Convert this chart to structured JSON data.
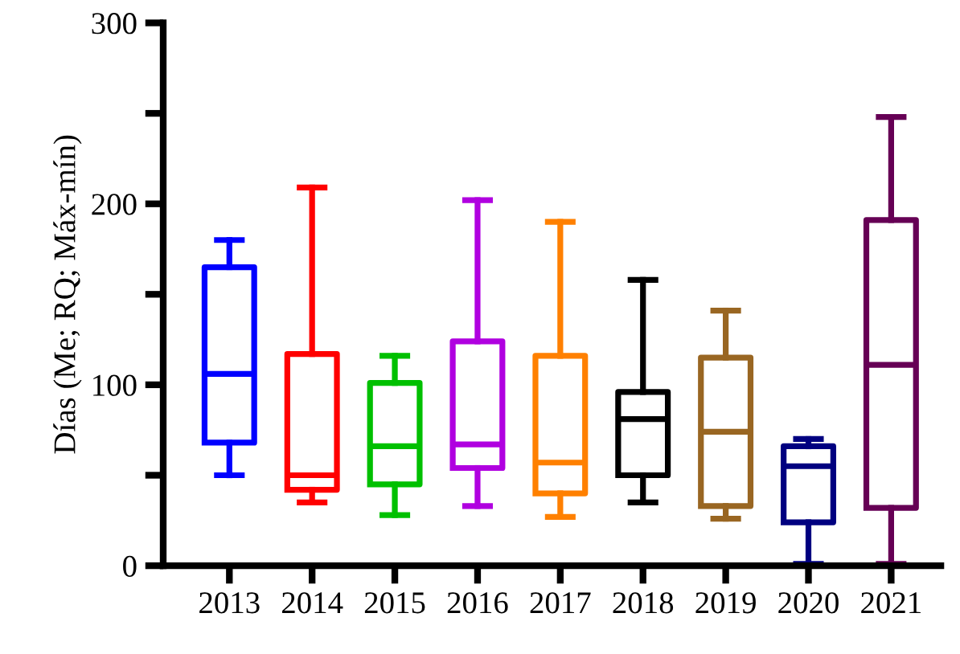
{
  "chart_data": {
    "type": "box",
    "ylabel": "Días (Me; RQ; Máx-mín)",
    "categories": [
      "2013",
      "2014",
      "2015",
      "2016",
      "2017",
      "2018",
      "2019",
      "2020",
      "2021"
    ],
    "colors": [
      "#0000ff",
      "#ff0000",
      "#00c000",
      "#b000e0",
      "#ff8000",
      "#000000",
      "#996622",
      "#000080",
      "#660055"
    ],
    "boxes": [
      {
        "low": 50,
        "q1": 68,
        "median": 106,
        "q3": 165,
        "high": 180
      },
      {
        "low": 35,
        "q1": 42,
        "median": 50,
        "q3": 117,
        "high": 209
      },
      {
        "low": 28,
        "q1": 45,
        "median": 66,
        "q3": 101,
        "high": 116
      },
      {
        "low": 33,
        "q1": 54,
        "median": 67,
        "q3": 124,
        "high": 202
      },
      {
        "low": 27,
        "q1": 40,
        "median": 57,
        "q3": 116,
        "high": 190
      },
      {
        "low": 35,
        "q1": 50,
        "median": 81,
        "q3": 96,
        "high": 158
      },
      {
        "low": 26,
        "q1": 33,
        "median": 74,
        "q3": 115,
        "high": 141
      },
      {
        "low": 1,
        "q1": 24,
        "median": 55,
        "q3": 66,
        "high": 70
      },
      {
        "low": 1,
        "q1": 32,
        "median": 111,
        "q3": 191,
        "high": 248
      }
    ],
    "ylim": [
      0,
      300
    ],
    "yticks": [
      0,
      {
        "value": 50,
        "label": null
      },
      100,
      {
        "value": 150,
        "label": null
      },
      200,
      {
        "value": 250,
        "label": null
      },
      300
    ],
    "grid": false
  }
}
